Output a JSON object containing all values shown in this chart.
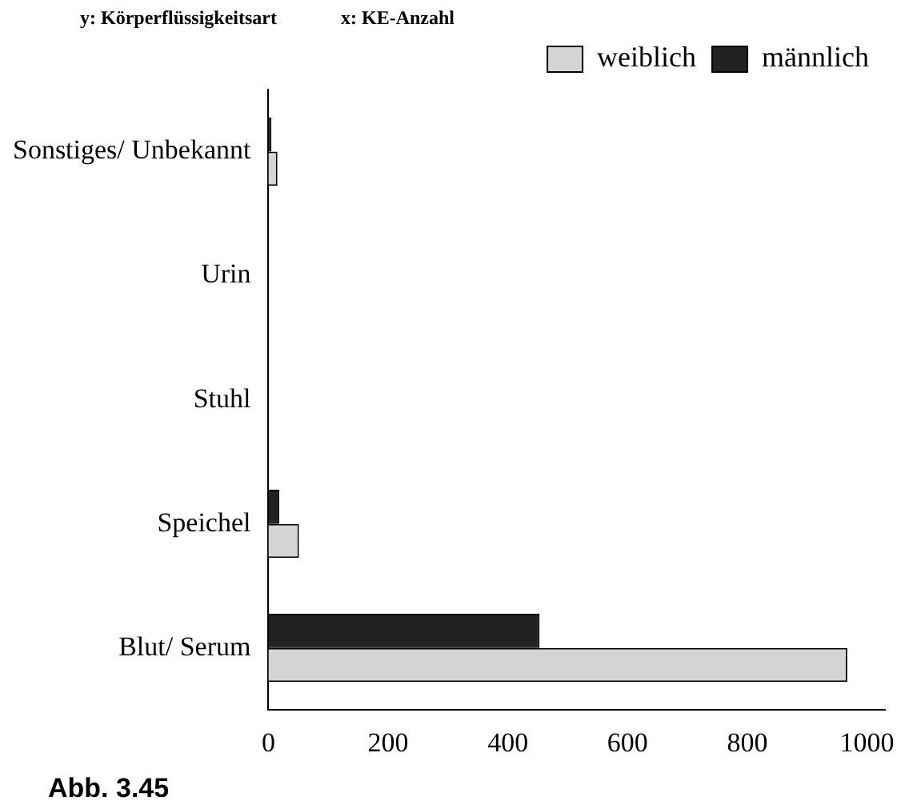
{
  "chart_data": {
    "type": "bar",
    "orientation": "horizontal",
    "ylabel": "y: Körperflüssigkeitsart",
    "xlabel": "x: KE-Anzahl",
    "categories": [
      "Sonstiges/ Unbekannt",
      "Urin",
      "Stuhl",
      "Speichel",
      "Blut/ Serum"
    ],
    "series": [
      {
        "name": "weiblich",
        "color": "#d4d4d4",
        "values": [
          15,
          null,
          null,
          51,
          967
        ]
      },
      {
        "name": "männlich",
        "color": "#222222",
        "values": [
          5,
          null,
          null,
          18,
          453
        ]
      }
    ],
    "xlim": [
      0,
      1030
    ],
    "xticks": [
      0,
      200,
      400,
      600,
      800,
      1000
    ],
    "grid": false,
    "legend": "top right",
    "annotations": [
      "Abb. 3.45"
    ]
  }
}
